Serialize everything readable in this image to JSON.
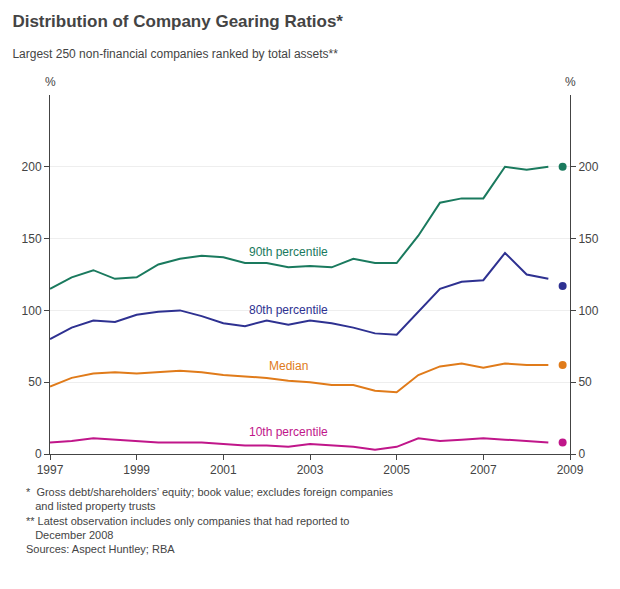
{
  "chart_data": {
    "type": "line",
    "title": "Distribution of Company Gearing Ratios*",
    "subtitle": "Largest 250 non-financial companies ranked by total assets**",
    "ylabel": "%",
    "y2label": "%",
    "x": [
      1997,
      1997.5,
      1998,
      1998.5,
      1999,
      1999.5,
      2000,
      2000.5,
      2001,
      2001.5,
      2002,
      2002.5,
      2003,
      2003.5,
      2004,
      2004.5,
      2005,
      2005.5,
      2006,
      2006.5,
      2007,
      2007.5,
      2008,
      2008.5
    ],
    "series": [
      {
        "name": "90th percentile",
        "color": "#1a7a5e",
        "values": [
          115,
          123,
          128,
          122,
          123,
          132,
          136,
          138,
          137,
          133,
          133,
          130,
          131,
          130,
          136,
          133,
          133,
          152,
          175,
          178,
          178,
          200,
          198,
          200
        ],
        "latest": {
          "x": 2008.83,
          "y": 200
        }
      },
      {
        "name": "80th percentile",
        "color": "#2e3191",
        "values": [
          80,
          88,
          93,
          92,
          97,
          99,
          100,
          96,
          91,
          89,
          93,
          90,
          93,
          91,
          88,
          84,
          83,
          99,
          115,
          120,
          121,
          140,
          125,
          122
        ],
        "latest": {
          "x": 2008.83,
          "y": 117
        }
      },
      {
        "name": "Median",
        "color": "#e07b1a",
        "values": [
          47,
          53,
          56,
          57,
          56,
          57,
          58,
          57,
          55,
          54,
          53,
          51,
          50,
          48,
          48,
          44,
          43,
          55,
          61,
          63,
          60,
          63,
          62,
          62
        ],
        "latest": {
          "x": 2008.83,
          "y": 62
        }
      },
      {
        "name": "10th percentile",
        "color": "#c0168a",
        "values": [
          8,
          9,
          11,
          10,
          9,
          8,
          8,
          8,
          7,
          6,
          6,
          5,
          7,
          6,
          5,
          3,
          5,
          11,
          9,
          10,
          11,
          10,
          9,
          8
        ],
        "latest": {
          "x": 2008.83,
          "y": 8
        }
      }
    ],
    "xlim": [
      1997,
      2009
    ],
    "xticks": [
      1997,
      1999,
      2001,
      2003,
      2005,
      2007,
      2009
    ],
    "ylim": [
      0,
      250
    ],
    "yticks": [
      0,
      50,
      100,
      150,
      200
    ],
    "y2lim": [
      0,
      250
    ],
    "y2ticks": [
      0,
      50,
      100,
      150,
      200
    ],
    "grid": true,
    "footnotes": [
      "*  Gross debt/shareholders’ equity; book value; excludes foreign companies",
      "   and listed property trusts",
      "** Latest observation includes only companies that had reported to",
      "   December 2008",
      "Sources: Aspect Huntley; RBA"
    ]
  }
}
